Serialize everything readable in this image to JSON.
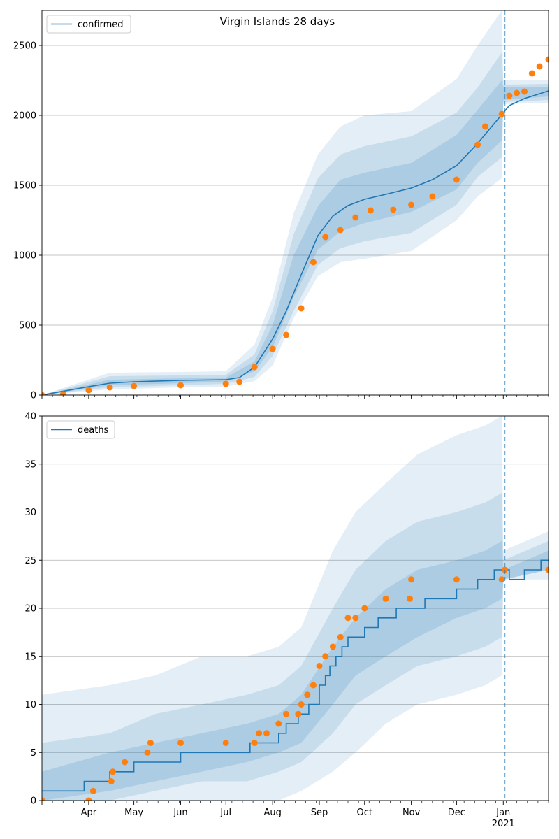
{
  "chart_data": [
    {
      "type": "line",
      "title": "Virgin Islands 28 days",
      "ylim": [
        0,
        2750
      ],
      "yticks": [
        0,
        500,
        1000,
        1500,
        2000,
        2500
      ],
      "grid": "y",
      "legend": {
        "position": "top-left",
        "entries": [
          "confirmed"
        ]
      },
      "forecast_start": "2021-01-02",
      "colors": {
        "model": "#1f77b4",
        "observed": "#ff7f0e",
        "band": "#1f77b4"
      },
      "series": [
        {
          "name": "confirmed",
          "kind": "line",
          "x": [
            "2020-03-01",
            "2020-04-01",
            "2020-04-15",
            "2020-05-01",
            "2020-06-01",
            "2020-07-01",
            "2020-07-10",
            "2020-07-20",
            "2020-08-01",
            "2020-08-10",
            "2020-08-20",
            "2020-08-31",
            "2020-09-10",
            "2020-09-20",
            "2020-10-01",
            "2020-10-15",
            "2020-11-01",
            "2020-11-15",
            "2020-12-01",
            "2020-12-15",
            "2020-12-29",
            "2021-01-05",
            "2021-01-15",
            "2021-01-31"
          ],
          "y": [
            0,
            60,
            85,
            95,
            105,
            110,
            125,
            200,
            400,
            600,
            860,
            1140,
            1280,
            1355,
            1400,
            1435,
            1480,
            1540,
            1640,
            1800,
            1980,
            2070,
            2120,
            2175
          ]
        },
        {
          "name": "observed",
          "kind": "scatter",
          "x": [
            "2020-03-01",
            "2020-03-15",
            "2020-04-01",
            "2020-04-15",
            "2020-05-01",
            "2020-06-01",
            "2020-07-01",
            "2020-07-10",
            "2020-07-20",
            "2020-08-01",
            "2020-08-10",
            "2020-08-20",
            "2020-08-28",
            "2020-09-05",
            "2020-09-15",
            "2020-09-25",
            "2020-10-05",
            "2020-10-20",
            "2020-11-01",
            "2020-11-15",
            "2020-12-01",
            "2020-12-15",
            "2020-12-20",
            "2020-12-31",
            "2021-01-05",
            "2021-01-10",
            "2021-01-15",
            "2021-01-20",
            "2021-01-25",
            "2021-01-31"
          ],
          "y": [
            0,
            5,
            35,
            55,
            65,
            70,
            80,
            95,
            200,
            330,
            430,
            620,
            950,
            1130,
            1180,
            1270,
            1320,
            1325,
            1360,
            1420,
            1540,
            1790,
            1920,
            2010,
            2140,
            2160,
            2170,
            2300,
            2350,
            2400
          ]
        }
      ],
      "bands": [
        {
          "x": [
            "2020-03-01",
            "2020-04-15",
            "2020-06-01",
            "2020-07-01",
            "2020-07-20",
            "2020-08-01",
            "2020-08-15",
            "2020-08-31",
            "2020-09-15",
            "2020-10-01",
            "2020-11-01",
            "2020-12-01",
            "2020-12-15",
            "2020-12-31",
            "2021-01-01",
            "2021-01-31"
          ],
          "lo": [
            0,
            40,
            55,
            60,
            100,
            210,
            550,
            850,
            950,
            975,
            1030,
            1250,
            1420,
            1550,
            2080,
            2090
          ],
          "hi": [
            0,
            160,
            165,
            170,
            360,
            700,
            1300,
            1720,
            1920,
            2000,
            2030,
            2260,
            2500,
            2750,
            2250,
            2250
          ]
        },
        {
          "x": [
            "2020-03-01",
            "2020-04-15",
            "2020-06-01",
            "2020-07-01",
            "2020-07-20",
            "2020-08-01",
            "2020-08-15",
            "2020-08-31",
            "2020-09-15",
            "2020-10-01",
            "2020-11-01",
            "2020-12-01",
            "2020-12-15",
            "2020-12-31",
            "2021-01-01",
            "2021-01-31"
          ],
          "lo": [
            0,
            55,
            70,
            80,
            130,
            280,
            600,
            930,
            1050,
            1100,
            1160,
            1360,
            1560,
            1700,
            2095,
            2110
          ],
          "hi": [
            0,
            135,
            140,
            145,
            290,
            600,
            1150,
            1550,
            1720,
            1780,
            1850,
            2020,
            2200,
            2450,
            2220,
            2225
          ]
        },
        {
          "x": [
            "2020-03-01",
            "2020-04-15",
            "2020-06-01",
            "2020-07-01",
            "2020-07-20",
            "2020-08-01",
            "2020-08-15",
            "2020-08-31",
            "2020-09-15",
            "2020-10-01",
            "2020-11-01",
            "2020-12-01",
            "2020-12-15",
            "2020-12-31",
            "2021-01-01",
            "2021-01-31"
          ],
          "lo": [
            0,
            70,
            85,
            95,
            170,
            340,
            700,
            1040,
            1170,
            1230,
            1310,
            1470,
            1660,
            1820,
            2110,
            2135
          ],
          "hi": [
            0,
            110,
            120,
            125,
            240,
            500,
            1000,
            1350,
            1540,
            1590,
            1660,
            1860,
            2040,
            2250,
            2200,
            2205
          ]
        }
      ]
    },
    {
      "type": "line",
      "title": "",
      "ylim": [
        0,
        40
      ],
      "yticks": [
        0,
        5,
        10,
        15,
        20,
        25,
        30,
        35,
        40
      ],
      "grid": "y",
      "legend": {
        "position": "top-left",
        "entries": [
          "deaths"
        ]
      },
      "forecast_start": "2021-01-02",
      "x_ticks": [
        "Apr",
        "May",
        "Jun",
        "Jul",
        "Aug",
        "Sep",
        "Oct",
        "Nov",
        "Dec",
        "Jan"
      ],
      "x_tick_dates": [
        "2020-04-01",
        "2020-05-01",
        "2020-06-01",
        "2020-07-01",
        "2020-08-01",
        "2020-09-01",
        "2020-10-01",
        "2020-11-01",
        "2020-12-01",
        "2021-01-01"
      ],
      "x_year_label": "2021",
      "series": [
        {
          "name": "deaths",
          "kind": "step",
          "x": [
            "2020-03-01",
            "2020-03-29",
            "2020-04-15",
            "2020-04-29",
            "2020-05-01",
            "2020-06-01",
            "2020-07-17",
            "2020-08-05",
            "2020-08-10",
            "2020-08-18",
            "2020-08-25",
            "2020-09-01",
            "2020-09-05",
            "2020-09-08",
            "2020-09-12",
            "2020-09-16",
            "2020-09-20",
            "2020-09-25",
            "2020-10-01",
            "2020-10-10",
            "2020-10-22",
            "2020-11-10",
            "2020-12-01",
            "2020-12-15",
            "2020-12-26",
            "2021-01-05",
            "2021-01-15",
            "2021-01-26",
            "2021-01-31"
          ],
          "y": [
            1,
            2,
            3,
            3,
            4,
            5,
            6,
            7,
            8,
            9,
            10,
            12,
            13,
            14,
            15,
            16,
            17,
            17,
            18,
            19,
            20,
            21,
            22,
            23,
            24,
            23,
            24,
            25,
            25
          ]
        },
        {
          "name": "observed",
          "kind": "scatter",
          "x": [
            "2020-03-01",
            "2020-04-01",
            "2020-04-04",
            "2020-04-16",
            "2020-04-17",
            "2020-04-25",
            "2020-05-10",
            "2020-05-12",
            "2020-06-01",
            "2020-07-01",
            "2020-07-20",
            "2020-07-23",
            "2020-07-28",
            "2020-08-05",
            "2020-08-10",
            "2020-08-18",
            "2020-08-20",
            "2020-08-24",
            "2020-08-28",
            "2020-09-01",
            "2020-09-05",
            "2020-09-10",
            "2020-09-15",
            "2020-09-20",
            "2020-09-25",
            "2020-10-01",
            "2020-10-15",
            "2020-10-31",
            "2020-11-01",
            "2020-12-01",
            "2020-12-31",
            "2021-01-02",
            "2021-01-31"
          ],
          "y": [
            0,
            0,
            1,
            2,
            3,
            4,
            5,
            6,
            6,
            6,
            6,
            7,
            7,
            8,
            9,
            9,
            10,
            11,
            12,
            14,
            15,
            16,
            17,
            19,
            19,
            20,
            21,
            21,
            23,
            23,
            23,
            24,
            24
          ]
        }
      ],
      "bands": [
        {
          "x": [
            "2020-03-01",
            "2020-04-15",
            "2020-05-15",
            "2020-06-15",
            "2020-07-15",
            "2020-08-05",
            "2020-08-20",
            "2020-09-10",
            "2020-09-25",
            "2020-10-15",
            "2020-11-05",
            "2020-12-01",
            "2020-12-20",
            "2020-12-31",
            "2021-01-01",
            "2021-01-31"
          ],
          "lo": [
            0,
            0,
            0,
            0,
            0,
            0,
            1,
            3,
            5,
            8,
            10,
            11,
            12,
            13,
            23,
            23
          ],
          "hi": [
            11,
            12,
            13,
            15,
            15,
            16,
            18,
            26,
            30,
            33,
            36,
            38,
            39,
            40,
            26,
            28
          ]
        },
        {
          "x": [
            "2020-03-01",
            "2020-04-15",
            "2020-05-15",
            "2020-06-15",
            "2020-07-15",
            "2020-08-05",
            "2020-08-20",
            "2020-09-10",
            "2020-09-25",
            "2020-10-15",
            "2020-11-05",
            "2020-12-01",
            "2020-12-20",
            "2020-12-31",
            "2021-01-01",
            "2021-01-31"
          ],
          "lo": [
            0,
            0,
            1,
            2,
            2,
            3,
            4,
            7,
            10,
            12,
            14,
            15,
            16,
            17,
            23,
            24
          ],
          "hi": [
            6,
            7,
            9,
            10,
            11,
            12,
            14,
            20,
            24,
            27,
            29,
            30,
            31,
            32,
            25,
            27
          ]
        },
        {
          "x": [
            "2020-03-01",
            "2020-04-15",
            "2020-05-15",
            "2020-06-15",
            "2020-07-15",
            "2020-08-05",
            "2020-08-20",
            "2020-09-10",
            "2020-09-25",
            "2020-10-15",
            "2020-11-05",
            "2020-12-01",
            "2020-12-20",
            "2020-12-31",
            "2021-01-01",
            "2021-01-31"
          ],
          "lo": [
            0,
            1,
            2,
            3,
            4,
            5,
            6,
            10,
            13,
            15,
            17,
            19,
            20,
            21,
            23,
            24
          ],
          "hi": [
            3,
            5,
            6,
            7,
            8,
            9,
            11,
            16,
            19,
            22,
            24,
            25,
            26,
            27,
            24,
            26
          ]
        }
      ]
    }
  ]
}
